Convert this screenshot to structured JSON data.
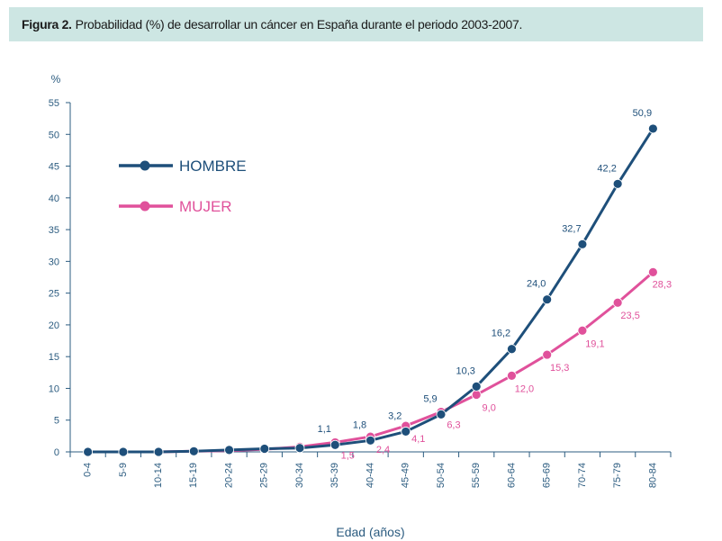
{
  "header": {
    "figure_label": "Figura 2.",
    "title": "Probabilidad (%) de desarrollar un cáncer en España durante el periodo 2003-2007."
  },
  "colors": {
    "header_bg": "#cde6e3",
    "axis": "#2c5c80",
    "hombre": "#1e4f7a",
    "mujer": "#e0519b"
  },
  "chart_data": {
    "type": "line",
    "ylabel": "%",
    "xlabel": "Edad (años)",
    "ylim": [
      0,
      55
    ],
    "yticks": [
      0,
      5,
      10,
      15,
      20,
      25,
      30,
      35,
      40,
      45,
      50,
      55
    ],
    "grid": false,
    "legend_position": "top-left",
    "categories": [
      "0-4",
      "5-9",
      "10-14",
      "15-19",
      "20-24",
      "25-29",
      "30-34",
      "35-39",
      "40-44",
      "45-49",
      "50-54",
      "55-59",
      "60-64",
      "65-69",
      "70-74",
      "75-79",
      "80-84"
    ],
    "series": [
      {
        "name": "HOMBRE",
        "values": [
          0.0,
          0.0,
          0.0,
          0.1,
          0.3,
          0.5,
          0.6,
          1.1,
          1.8,
          3.2,
          5.9,
          10.3,
          16.2,
          24.0,
          32.7,
          42.2,
          50.9
        ],
        "labels": [
          "",
          "",
          "",
          "",
          "",
          "",
          "",
          "1,1",
          "1,8",
          "3,2",
          "5,9",
          "10,3",
          "16,2",
          "24,0",
          "32,7",
          "42,2",
          "50,9"
        ]
      },
      {
        "name": "MUJER",
        "values": [
          0.0,
          0.0,
          0.0,
          0.1,
          0.2,
          0.4,
          0.8,
          1.5,
          2.4,
          4.1,
          6.3,
          9.0,
          12.0,
          15.3,
          19.1,
          23.5,
          28.3
        ],
        "labels": [
          "",
          "",
          "",
          "",
          "",
          "",
          "",
          "1,5",
          "2,4",
          "4,1",
          "6,3",
          "9,0",
          "12,0",
          "15,3",
          "19,1",
          "23,5",
          "28,3"
        ]
      }
    ]
  }
}
